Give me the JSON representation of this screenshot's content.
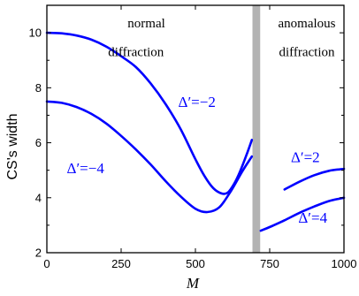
{
  "chart_data": {
    "type": "line",
    "title": "",
    "xlabel": "M",
    "ylabel": "CS's width",
    "xlim": [
      0,
      1000
    ],
    "ylim": [
      2,
      11
    ],
    "x_ticks": [
      0,
      250,
      500,
      750,
      1000
    ],
    "y_ticks": [
      2,
      4,
      6,
      8,
      10
    ],
    "grid": false,
    "line_color": "#0000ff",
    "band_color": "#b3b3b3",
    "band_x": [
      692,
      718
    ],
    "region_labels": [
      {
        "text": "normal",
        "anchor": [
          335,
          10.2
        ]
      },
      {
        "text": "diffraction",
        "anchor": [
          300,
          9.15
        ]
      },
      {
        "text": "anomalous",
        "anchor": [
          875,
          10.2
        ]
      },
      {
        "text": "diffraction",
        "anchor": [
          875,
          9.15
        ]
      }
    ],
    "curve_labels": [
      {
        "text": "Δ′=−2",
        "anchor": [
          505,
          7.3
        ]
      },
      {
        "text": "Δ′=−4",
        "anchor": [
          130,
          4.9
        ]
      },
      {
        "text": "Δ′=2",
        "anchor": [
          870,
          5.3
        ]
      },
      {
        "text": "Δ′=4",
        "anchor": [
          895,
          3.1
        ]
      }
    ],
    "series": [
      {
        "name": "Δ′=−2",
        "x": [
          0,
          50,
          100,
          150,
          200,
          250,
          300,
          350,
          400,
          450,
          500,
          530,
          560,
          590,
          610,
          630,
          650,
          670,
          690
        ],
        "y": [
          10.0,
          9.98,
          9.9,
          9.75,
          9.5,
          9.15,
          8.75,
          8.15,
          7.4,
          6.5,
          5.4,
          4.8,
          4.35,
          4.15,
          4.2,
          4.5,
          4.95,
          5.5,
          6.1
        ]
      },
      {
        "name": "Δ′=−4",
        "x": [
          0,
          50,
          100,
          150,
          200,
          250,
          300,
          350,
          400,
          450,
          500,
          540,
          580,
          620,
          660,
          690
        ],
        "y": [
          7.5,
          7.45,
          7.3,
          7.05,
          6.7,
          6.25,
          5.75,
          5.2,
          4.6,
          4.05,
          3.6,
          3.48,
          3.65,
          4.25,
          5.0,
          5.5
        ]
      },
      {
        "name": "Δ′=2",
        "x": [
          800,
          850,
          900,
          950,
          1000
        ],
        "y": [
          4.3,
          4.58,
          4.82,
          4.98,
          5.05
        ]
      },
      {
        "name": "Δ′=4",
        "x": [
          720,
          760,
          800,
          850,
          900,
          950,
          1000
        ],
        "y": [
          2.8,
          2.98,
          3.18,
          3.45,
          3.68,
          3.88,
          4.0
        ]
      }
    ]
  }
}
